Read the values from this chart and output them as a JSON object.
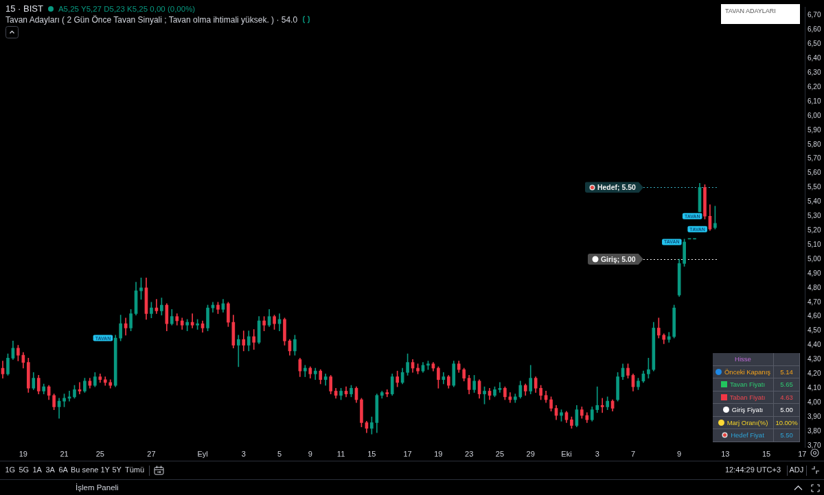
{
  "chart_data": [
    {
      "type": "candlestick",
      "title": "15 · BIST",
      "subtitle": "Tavan Adayları ( 2 Gün Önce Tavan Sinyali ; Tavan olma ihtimali yüksek. ) · 54.0",
      "categories": [
        null,
        null,
        null,
        null,
        "19",
        null,
        null,
        null,
        null,
        null,
        null,
        null,
        "21",
        null,
        null,
        null,
        null,
        null,
        null,
        "25",
        null,
        null,
        null,
        null,
        null,
        null,
        null,
        null,
        null,
        "27",
        null,
        null,
        null,
        null,
        null,
        null,
        null,
        null,
        null,
        "Eyl",
        null,
        null,
        null,
        null,
        null,
        null,
        null,
        "3",
        null,
        null,
        null,
        null,
        null,
        null,
        "5",
        null,
        null,
        null,
        null,
        null,
        "9",
        null,
        null,
        null,
        null,
        null,
        "11",
        null,
        null,
        null,
        null,
        null,
        "15",
        null,
        null,
        null,
        null,
        null,
        null,
        "17",
        null,
        null,
        null,
        null,
        null,
        "19",
        null,
        null,
        null,
        null,
        null,
        "23",
        null,
        null,
        null,
        null,
        null,
        "25",
        null,
        null,
        null,
        null,
        null,
        "29",
        null,
        null,
        null,
        null,
        null,
        null,
        "Eki",
        null,
        null,
        null,
        null,
        null,
        "3",
        null,
        null,
        null,
        null,
        null,
        null,
        "7",
        null,
        null,
        null,
        null,
        null,
        null,
        null,
        null,
        "9",
        null,
        null,
        null,
        null,
        null,
        null,
        null,
        null,
        "13",
        null,
        null,
        null,
        null,
        null,
        null,
        null,
        "15",
        null,
        null,
        null,
        null,
        null,
        null,
        "17"
      ],
      "ohlc": [
        [
          4.24,
          4.29,
          4.17,
          4.2
        ],
        [
          4.2,
          4.34,
          4.19,
          4.31
        ],
        [
          4.31,
          4.43,
          4.3,
          4.38
        ],
        [
          4.38,
          4.4,
          4.29,
          4.33
        ],
        [
          4.33,
          4.35,
          4.24,
          4.28
        ],
        [
          4.28,
          4.31,
          4.07,
          4.1
        ],
        [
          4.1,
          4.21,
          4.09,
          4.17
        ],
        [
          4.17,
          4.19,
          4.06,
          4.08
        ],
        [
          4.08,
          4.13,
          4.06,
          4.11
        ],
        [
          4.11,
          4.12,
          4.02,
          4.05
        ],
        [
          4.05,
          4.06,
          3.95,
          3.97
        ],
        [
          3.97,
          4.03,
          3.89,
          4.01
        ],
        [
          4.01,
          4.06,
          3.97,
          4.03
        ],
        [
          4.03,
          4.08,
          4.01,
          4.04
        ],
        [
          4.04,
          4.12,
          4.03,
          4.09
        ],
        [
          4.09,
          4.14,
          4.06,
          4.08
        ],
        [
          4.08,
          4.17,
          4.07,
          4.15
        ],
        [
          4.15,
          4.17,
          4.1,
          4.12
        ],
        [
          4.12,
          4.21,
          4.11,
          4.18
        ],
        [
          4.18,
          4.2,
          4.14,
          4.16
        ],
        [
          4.16,
          4.18,
          4.12,
          4.14
        ],
        [
          4.14,
          4.16,
          4.1,
          4.12
        ],
        [
          4.12,
          4.47,
          4.11,
          4.45
        ],
        [
          4.45,
          4.61,
          4.43,
          4.55
        ],
        [
          4.55,
          4.59,
          4.47,
          4.52
        ],
        [
          4.52,
          4.65,
          4.5,
          4.62
        ],
        [
          4.62,
          4.84,
          4.61,
          4.78
        ],
        [
          4.78,
          4.87,
          4.72,
          4.8
        ],
        [
          4.8,
          4.87,
          4.58,
          4.62
        ],
        [
          4.62,
          4.7,
          4.59,
          4.66
        ],
        [
          4.66,
          4.72,
          4.62,
          4.64
        ],
        [
          4.64,
          4.73,
          4.61,
          4.68
        ],
        [
          4.68,
          4.69,
          4.5,
          4.55
        ],
        [
          4.55,
          4.65,
          4.54,
          4.6
        ],
        [
          4.6,
          4.62,
          4.54,
          4.57
        ],
        [
          4.57,
          4.59,
          4.51,
          4.54
        ],
        [
          4.54,
          4.58,
          4.5,
          4.56
        ],
        [
          4.56,
          4.62,
          4.52,
          4.54
        ],
        [
          4.54,
          4.58,
          4.51,
          4.55
        ],
        [
          4.55,
          4.57,
          4.49,
          4.52
        ],
        [
          4.52,
          4.68,
          4.5,
          4.66
        ],
        [
          4.66,
          4.7,
          4.63,
          4.68
        ],
        [
          4.68,
          4.7,
          4.62,
          4.65
        ],
        [
          4.65,
          4.72,
          4.63,
          4.69
        ],
        [
          4.69,
          4.7,
          4.53,
          4.56
        ],
        [
          4.56,
          4.61,
          4.38,
          4.4
        ],
        [
          4.4,
          4.47,
          4.25,
          4.44
        ],
        [
          4.44,
          4.5,
          4.36,
          4.4
        ],
        [
          4.4,
          4.5,
          4.36,
          4.46
        ],
        [
          4.46,
          4.51,
          4.37,
          4.42
        ],
        [
          4.42,
          4.6,
          4.41,
          4.57
        ],
        [
          4.57,
          4.6,
          4.5,
          4.54
        ],
        [
          4.54,
          4.65,
          4.53,
          4.6
        ],
        [
          4.6,
          4.61,
          4.51,
          4.55
        ],
        [
          4.55,
          4.62,
          4.5,
          4.58
        ],
        [
          4.58,
          4.59,
          4.4,
          4.43
        ],
        [
          4.43,
          4.44,
          4.33,
          4.36
        ],
        [
          4.36,
          4.47,
          4.33,
          4.44
        ],
        [
          4.3,
          4.31,
          4.18,
          4.22
        ],
        [
          4.22,
          4.26,
          4.18,
          4.24
        ],
        [
          4.24,
          4.25,
          4.17,
          4.2
        ],
        [
          4.2,
          4.24,
          4.16,
          4.22
        ],
        [
          4.22,
          4.23,
          4.13,
          4.16
        ],
        [
          4.16,
          4.2,
          4.12,
          4.18
        ],
        [
          4.18,
          4.19,
          4.06,
          4.08
        ],
        [
          4.08,
          4.1,
          4.03,
          4.05
        ],
        [
          4.05,
          4.1,
          4.02,
          4.08
        ],
        [
          4.08,
          4.11,
          4.04,
          4.06
        ],
        [
          4.06,
          4.12,
          4.04,
          4.1
        ],
        [
          4.1,
          4.11,
          4.0,
          4.02
        ],
        [
          4.02,
          4.03,
          3.83,
          3.86
        ],
        [
          3.86,
          3.87,
          3.79,
          3.82
        ],
        [
          3.82,
          3.9,
          3.78,
          3.86
        ],
        [
          3.86,
          4.06,
          3.79,
          4.05
        ],
        [
          4.05,
          4.08,
          4.03,
          4.07
        ],
        [
          4.07,
          4.09,
          4.04,
          4.06
        ],
        [
          4.06,
          4.2,
          4.05,
          4.18
        ],
        [
          4.18,
          4.22,
          4.11,
          4.14
        ],
        [
          4.14,
          4.24,
          4.13,
          4.21
        ],
        [
          4.21,
          4.34,
          4.19,
          4.28
        ],
        [
          4.28,
          4.3,
          4.21,
          4.24
        ],
        [
          4.24,
          4.27,
          4.2,
          4.22
        ],
        [
          4.22,
          4.28,
          4.21,
          4.26
        ],
        [
          4.26,
          4.29,
          4.23,
          4.27
        ],
        [
          4.27,
          4.28,
          4.22,
          4.24
        ],
        [
          4.24,
          4.25,
          4.1,
          4.16
        ],
        [
          4.16,
          4.21,
          4.13,
          4.18
        ],
        [
          4.18,
          4.19,
          4.1,
          4.12
        ],
        [
          4.12,
          4.29,
          4.11,
          4.27
        ],
        [
          4.27,
          4.29,
          4.21,
          4.23
        ],
        [
          4.23,
          4.24,
          4.15,
          4.17
        ],
        [
          4.17,
          4.19,
          4.06,
          4.09
        ],
        [
          4.09,
          4.19,
          4.07,
          4.15
        ],
        [
          4.15,
          4.16,
          4.03,
          4.06
        ],
        [
          4.06,
          4.11,
          3.99,
          4.08
        ],
        [
          4.08,
          4.1,
          4.02,
          4.05
        ],
        [
          4.05,
          4.11,
          4.04,
          4.09
        ],
        [
          4.09,
          4.14,
          4.07,
          4.1
        ],
        [
          4.1,
          4.11,
          4.02,
          4.04
        ],
        [
          4.04,
          4.07,
          4.0,
          4.02
        ],
        [
          4.02,
          4.06,
          4.0,
          4.04
        ],
        [
          4.04,
          4.15,
          4.03,
          4.12
        ],
        [
          4.12,
          4.13,
          4.05,
          4.08
        ],
        [
          4.08,
          4.26,
          4.06,
          4.17
        ],
        [
          4.17,
          4.18,
          4.07,
          4.1
        ],
        [
          4.1,
          4.12,
          4.02,
          4.05
        ],
        [
          4.05,
          4.08,
          4.0,
          4.02
        ],
        [
          4.02,
          4.04,
          3.94,
          3.96
        ],
        [
          3.96,
          3.98,
          3.88,
          3.91
        ],
        [
          3.91,
          3.95,
          3.87,
          3.93
        ],
        [
          3.93,
          3.94,
          3.86,
          3.88
        ],
        [
          3.88,
          3.9,
          3.82,
          3.84
        ],
        [
          3.84,
          3.98,
          3.83,
          3.95
        ],
        [
          3.95,
          3.97,
          3.89,
          3.91
        ],
        [
          3.91,
          3.93,
          3.86,
          3.88
        ],
        [
          3.88,
          3.97,
          3.87,
          3.95
        ],
        [
          3.95,
          4.11,
          3.93,
          3.98
        ],
        [
          3.98,
          4.03,
          3.93,
          3.97
        ],
        [
          3.97,
          4.04,
          3.95,
          4.01
        ],
        [
          4.01,
          4.02,
          3.94,
          3.96
        ],
        [
          4.02,
          4.21,
          4.01,
          4.18
        ],
        [
          4.18,
          4.27,
          4.16,
          4.24
        ],
        [
          4.24,
          4.27,
          4.17,
          4.19
        ],
        [
          4.19,
          4.2,
          4.08,
          4.11
        ],
        [
          4.11,
          4.17,
          4.09,
          4.15
        ],
        [
          4.15,
          4.22,
          4.14,
          4.2
        ],
        [
          4.2,
          4.31,
          4.17,
          4.23
        ],
        [
          4.23,
          4.56,
          4.22,
          4.52
        ],
        [
          4.52,
          4.59,
          4.45,
          4.47
        ],
        [
          4.47,
          4.48,
          4.41,
          4.44
        ],
        [
          4.44,
          4.49,
          4.42,
          4.46
        ],
        [
          4.46,
          4.68,
          4.45,
          4.66
        ],
        [
          4.75,
          5.0,
          4.74,
          4.97
        ],
        [
          4.97,
          5.14,
          4.95,
          5.12
        ],
        [
          5.14,
          5.14,
          5.14,
          5.14
        ],
        [
          5.14,
          5.14,
          5.14,
          5.14
        ],
        [
          5.33,
          5.53,
          5.33,
          5.5
        ],
        [
          5.5,
          5.52,
          5.28,
          5.3
        ],
        [
          5.3,
          5.38,
          5.2,
          5.21
        ],
        [
          5.22,
          5.37,
          5.21,
          5.25
        ],
        null,
        null,
        null,
        null,
        null,
        null,
        null,
        null,
        null,
        null,
        null,
        null,
        null,
        null,
        null,
        null,
        null
      ],
      "colors": [
        "#f23645",
        "#089981",
        "#089981",
        "#f23645",
        "#f23645",
        "#f23645",
        "#089981",
        "#f23645",
        "#089981",
        "#f23645",
        "#f23645",
        "#089981",
        "#089981",
        "#089981",
        "#089981",
        "#f23645",
        "#089981",
        "#f23645",
        "#089981",
        "#f23645",
        "#f23645",
        "#f23645",
        "#089981",
        "#089981",
        "#f23645",
        "#089981",
        "#089981",
        "#089981",
        "#f23645",
        "#089981",
        "#f23645",
        "#089981",
        "#f23645",
        "#089981",
        "#f23645",
        "#f23645",
        "#089981",
        "#f23645",
        "#089981",
        "#f23645",
        "#089981",
        "#089981",
        "#f23645",
        "#089981",
        "#f23645",
        "#f23645",
        "#089981",
        "#f23645",
        "#089981",
        "#f23645",
        "#089981",
        "#f23645",
        "#089981",
        "#f23645",
        "#089981",
        "#f23645",
        "#f23645",
        "#089981",
        "#f23645",
        "#089981",
        "#f23645",
        "#089981",
        "#f23645",
        "#089981",
        "#f23645",
        "#f23645",
        "#089981",
        "#f23645",
        "#089981",
        "#f23645",
        "#f23645",
        "#f23645",
        "#089981",
        "#089981",
        "#089981",
        "#f23645",
        "#089981",
        "#f23645",
        "#089981",
        "#089981",
        "#f23645",
        "#f23645",
        "#089981",
        "#089981",
        "#f23645",
        "#f23645",
        "#089981",
        "#f23645",
        "#089981",
        "#f23645",
        "#f23645",
        "#f23645",
        "#089981",
        "#f23645",
        "#089981",
        "#f23645",
        "#089981",
        "#089981",
        "#f23645",
        "#f23645",
        "#089981",
        "#089981",
        "#f23645",
        "#089981",
        "#f23645",
        "#f23645",
        "#f23645",
        "#f23645",
        "#f23645",
        "#089981",
        "#f23645",
        "#f23645",
        "#089981",
        "#f23645",
        "#f23645",
        "#089981",
        "#089981",
        "#f23645",
        "#089981",
        "#f23645",
        "#089981",
        "#089981",
        "#f23645",
        "#f23645",
        "#089981",
        "#089981",
        "#089981",
        "#089981",
        "#f23645",
        "#f23645",
        "#089981",
        "#089981",
        "#089981",
        "#089981",
        "#089981",
        "#089981",
        "#089981",
        "#f23645",
        "#f23645",
        "#089981",
        null,
        null,
        null,
        null,
        null,
        null,
        null,
        null,
        null,
        null,
        null,
        null,
        null,
        null,
        null,
        null,
        null
      ],
      "value_labels": [
        null,
        null,
        null,
        null,
        null,
        null,
        null,
        null,
        null,
        null,
        null,
        null,
        null,
        null,
        null,
        null,
        null,
        null,
        null,
        null,
        null,
        null,
        "TAVAN",
        null,
        null,
        null,
        null,
        null,
        null,
        null,
        null,
        null,
        null,
        null,
        null,
        null,
        null,
        null,
        null,
        null,
        null,
        null,
        null,
        null,
        null,
        null,
        null,
        null,
        null,
        null,
        null,
        null,
        null,
        null,
        null,
        null,
        null,
        null,
        null,
        null,
        null,
        null,
        null,
        null,
        null,
        null,
        null,
        null,
        null,
        null,
        null,
        null,
        null,
        null,
        null,
        null,
        null,
        null,
        null,
        null,
        null,
        null,
        null,
        null,
        null,
        null,
        null,
        null,
        null,
        null,
        null,
        null,
        null,
        null,
        null,
        null,
        null,
        null,
        null,
        null,
        null,
        null,
        null,
        null,
        null,
        null,
        null,
        null,
        null,
        null,
        null,
        null,
        null,
        null,
        null,
        null,
        null,
        null,
        null,
        null,
        null,
        null,
        null,
        null,
        null,
        null,
        null,
        null,
        null,
        null,
        null,
        null,
        null,
        "TAVAN",
        null,
        null,
        null,
        "TAVAN",
        "TAVAN",
        null,
        null,
        null,
        null,
        null,
        null,
        null,
        null,
        null,
        null,
        null,
        null,
        null,
        null,
        null,
        null,
        null,
        null
      ],
      "ylim": [
        3.69,
        6.76
      ],
      "yticks": [
        {
          "value": 3.7,
          "label": "3,70"
        },
        {
          "value": 3.8,
          "label": "3,80"
        },
        {
          "value": 3.9,
          "label": "3,90"
        },
        {
          "value": 4.0,
          "label": "4,00"
        },
        {
          "value": 4.1,
          "label": "4,10"
        },
        {
          "value": 4.2,
          "label": "4,20"
        },
        {
          "value": 4.3,
          "label": "4,30"
        },
        {
          "value": 4.4,
          "label": "4,40"
        },
        {
          "value": 4.5,
          "label": "4,50"
        },
        {
          "value": 4.6,
          "label": "4,60"
        },
        {
          "value": 4.7,
          "label": "4,70"
        },
        {
          "value": 4.8,
          "label": "4,80"
        },
        {
          "value": 4.9,
          "label": "4,90"
        },
        {
          "value": 5.0,
          "label": "5,00"
        },
        {
          "value": 5.1,
          "label": "5,10"
        },
        {
          "value": 5.2,
          "label": "5,20"
        },
        {
          "value": 5.3,
          "label": "5,30"
        },
        {
          "value": 5.4,
          "label": "5,40"
        },
        {
          "value": 5.5,
          "label": "5,50"
        },
        {
          "value": 5.6,
          "label": "5,60"
        },
        {
          "value": 5.7,
          "label": "5,70"
        },
        {
          "value": 5.8,
          "label": "5,80"
        },
        {
          "value": 5.9,
          "label": "5,90"
        },
        {
          "value": 6.0,
          "label": "6,00"
        },
        {
          "value": 6.1,
          "label": "6,10"
        },
        {
          "value": 6.2,
          "label": "6,20"
        },
        {
          "value": 6.3,
          "label": "6,30"
        },
        {
          "value": 6.4,
          "label": "6,40"
        },
        {
          "value": 6.5,
          "label": "6,50"
        },
        {
          "value": 6.6,
          "label": "6,60"
        },
        {
          "value": 6.7,
          "label": "6,70"
        }
      ],
      "ref_lines": [
        {
          "axis": "y",
          "value": 5.5,
          "label": "Hedef; 5.50",
          "color": "#3ab4c6",
          "line_style": "dotted"
        },
        {
          "axis": "y",
          "value": 5.0,
          "label": "Giriş; 5.00",
          "color": "#ffffff",
          "line_style": "dotted"
        }
      ],
      "annotations": [
        "A5,25 Y5,27 D5,23 K5,25 0,00 (0,00%)",
        "TAVAN ADAYLARI",
        "1G",
        "5G",
        "1A",
        "3A",
        "6A",
        "Bu sene",
        "1Y",
        "5Y",
        "Tümü",
        "12:44:29 UTC+3",
        "ADJ",
        "İşlem Paneli"
      ]
    },
    {
      "type": "other",
      "title": "Hisse",
      "categories": [
        "Önceki Kapanış",
        "Tavan Fiyatı",
        "Taban Fiyatı",
        "Giriş Fiyatı",
        "Marj Oranı(%)",
        "Hedef Fiyat"
      ],
      "value_labels": [
        "5.14",
        "5.65",
        "4.63",
        "5.00",
        "10.00%",
        "5.50"
      ],
      "colors": [
        "#f5a31a",
        "#2ecc71",
        "#f0474f",
        "#ffffff",
        "#f5d327",
        "#2ea3d6"
      ]
    }
  ]
}
